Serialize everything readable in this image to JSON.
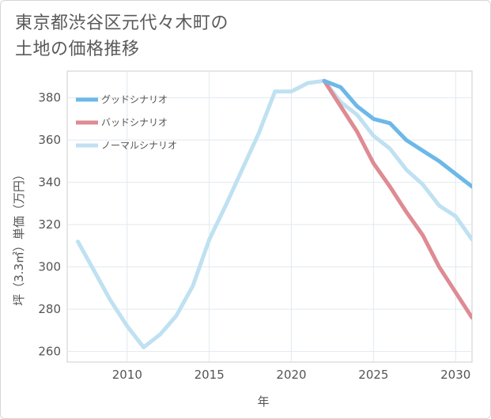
{
  "title_lines": [
    "東京都渋谷区元代々木町の",
    "土地の価格推移"
  ],
  "chart_data": {
    "type": "line",
    "title": "東京都渋谷区元代々木町の土地の価格推移",
    "xlabel": "年",
    "ylabel": "坪（3.3㎡）単価（万円）",
    "xlim": [
      2006,
      2031
    ],
    "ylim": [
      255,
      390
    ],
    "x_ticks": [
      2010,
      2015,
      2020,
      2025,
      2030
    ],
    "y_ticks": [
      260,
      280,
      300,
      320,
      340,
      360,
      380
    ],
    "grid": true,
    "legend_position": "top-left",
    "series": [
      {
        "name": "グッドシナリオ",
        "color": "#6cb8e8",
        "x": [
          2022,
          2023,
          2024,
          2025,
          2026,
          2027,
          2028,
          2029,
          2030,
          2031
        ],
        "y": [
          388,
          385,
          376,
          370,
          368,
          360,
          355,
          350,
          344,
          338
        ]
      },
      {
        "name": "バッドシナリオ",
        "color": "#de8b93",
        "x": [
          2022,
          2023,
          2024,
          2025,
          2026,
          2027,
          2028,
          2029,
          2030,
          2031
        ],
        "y": [
          388,
          376,
          364,
          349,
          338,
          326,
          315,
          300,
          288,
          276
        ]
      },
      {
        "name": "ノーマルシナリオ",
        "color": "#bfe1f1",
        "x": [
          2007,
          2008,
          2009,
          2010,
          2011,
          2012,
          2013,
          2014,
          2015,
          2016,
          2017,
          2018,
          2019,
          2020,
          2021,
          2022,
          2023,
          2024,
          2025,
          2026,
          2027,
          2028,
          2029,
          2030,
          2031
        ],
        "y": [
          312,
          298,
          284,
          272,
          262,
          268,
          277,
          291,
          313,
          329,
          346,
          363,
          383,
          383,
          387,
          388,
          378,
          372,
          362,
          356,
          346,
          339,
          329,
          324,
          313
        ]
      }
    ]
  }
}
